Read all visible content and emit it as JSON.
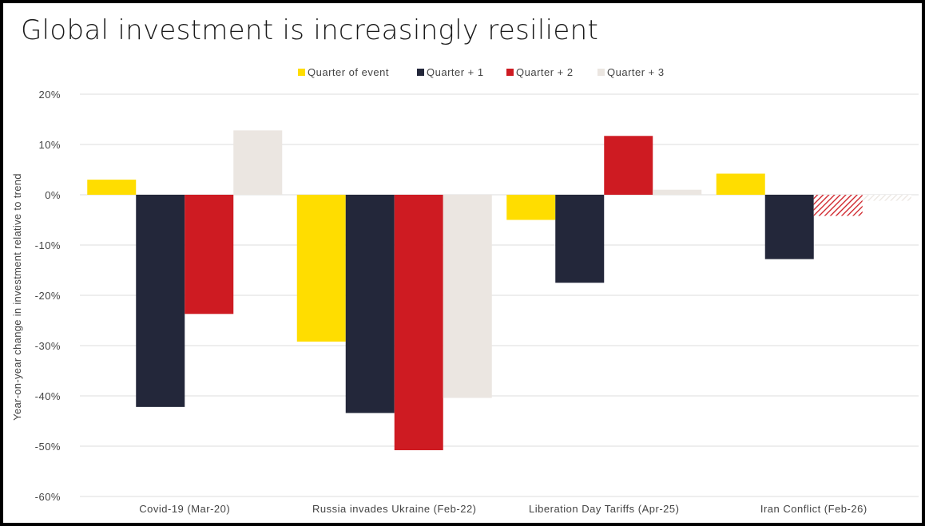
{
  "chart_data": {
    "type": "bar",
    "title": "Global investment is increasingly resilient",
    "ylabel": "Year-on-year change in investment relative to trend",
    "xlabel": "",
    "ylim": [
      -60,
      20
    ],
    "yticks": [
      20,
      10,
      0,
      -10,
      -20,
      -30,
      -40,
      -50,
      -60
    ],
    "ytick_labels": [
      "20%",
      "10%",
      "0%",
      "-10%",
      "-20%",
      "-30%",
      "-40%",
      "-50%",
      "-60%"
    ],
    "grid": true,
    "legend_position": "top-center",
    "categories": [
      "Covid-19 (Mar-20)",
      "Russia invades Ukraine (Feb-22)",
      "Liberation Day Tariffs (Apr-25)",
      "Iran Conflict (Feb-26)"
    ],
    "series": [
      {
        "name": "Quarter of event",
        "color": "#FFDD00",
        "values": [
          3.0,
          -29.2,
          -5.0,
          4.2
        ]
      },
      {
        "name": "Quarter + 1",
        "color": "#23273A",
        "values": [
          -42.2,
          -43.4,
          -17.5,
          -12.8
        ]
      },
      {
        "name": "Quarter + 2",
        "color": "#CE1B22",
        "values": [
          -23.7,
          -50.8,
          11.7,
          -4.2
        ]
      },
      {
        "name": "Quarter + 3",
        "color": "#EBE6E1",
        "values": [
          12.8,
          -40.4,
          1.0,
          -1.2
        ]
      }
    ],
    "hatched": [
      {
        "series_index": 2,
        "category_index": 3
      },
      {
        "series_index": 3,
        "category_index": 3
      }
    ]
  }
}
